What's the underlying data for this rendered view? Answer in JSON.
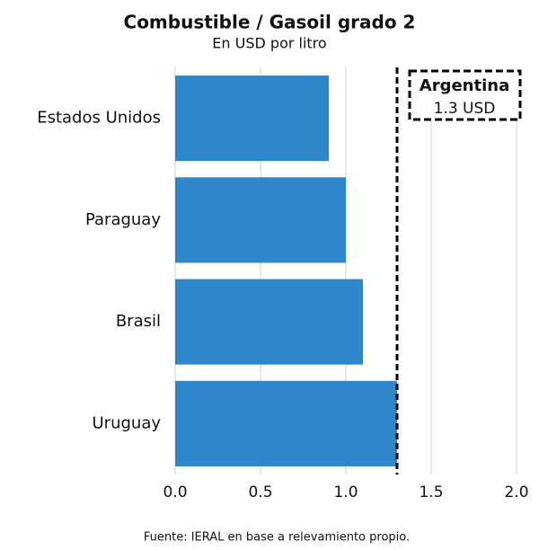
{
  "chart_data": {
    "type": "barh",
    "title": "Combustible / Gasoil grado 2",
    "subtitle": "En USD por litro",
    "categories": [
      "Estados Unidos",
      "Paraguay",
      "Brasil",
      "Uruguay"
    ],
    "values": [
      0.9,
      1.0,
      1.1,
      1.3
    ],
    "color": "#2f86c9",
    "xlim": [
      0,
      2
    ],
    "xticks": [
      {
        "value": 0,
        "label": "0.0"
      },
      0.5,
      {
        "value": 1,
        "label": "1.0"
      },
      1.5,
      {
        "value": 2,
        "label": "2.0"
      }
    ],
    "grid": true,
    "reference_line": {
      "value": 1.3,
      "label": "Argentina",
      "sublabel": "1.3 USD"
    },
    "source": "Fuente: IERAL en base a relevamiento propio."
  }
}
